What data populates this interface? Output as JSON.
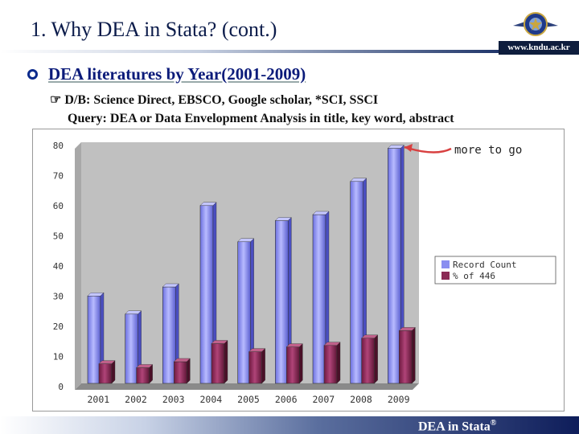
{
  "slide": {
    "title": "1. Why DEA in Stata? (cont.)",
    "site": "www.kndu.ac.kr",
    "heading": "DEA literatures by Year(2001-2009)",
    "db_line": "☞ D/B: Science Direct, EBSCO, Google scholar, *SCI, SSCI",
    "query_line": "Query: DEA or Data Envelopment Analysis in title, key word, abstract",
    "annotation": "more to go",
    "footer": "DEA in Stata",
    "footer_mark": "®"
  },
  "colors": {
    "title": "#0b1b4a",
    "record": "#8a8ef0",
    "percent": "#8b2a55",
    "plot_bg": "#c0c0c0",
    "arrow": "#d84040"
  },
  "chart_data": {
    "type": "bar",
    "categories": [
      "2001",
      "2002",
      "2003",
      "2004",
      "2005",
      "2006",
      "2007",
      "2008",
      "2009"
    ],
    "series": [
      {
        "name": "Record Count",
        "values": [
          29,
          23,
          32,
          59,
          47,
          54,
          56,
          67,
          78
        ]
      },
      {
        "name": "% of 446",
        "values": [
          6.5,
          5.2,
          7.2,
          13.2,
          10.5,
          12.1,
          12.6,
          15.0,
          17.5
        ]
      }
    ],
    "yticks": [
      "0",
      "10",
      "20",
      "30",
      "40",
      "50",
      "60",
      "70",
      "80"
    ],
    "ylim": [
      0,
      80
    ],
    "grid": false,
    "legend": "right"
  }
}
